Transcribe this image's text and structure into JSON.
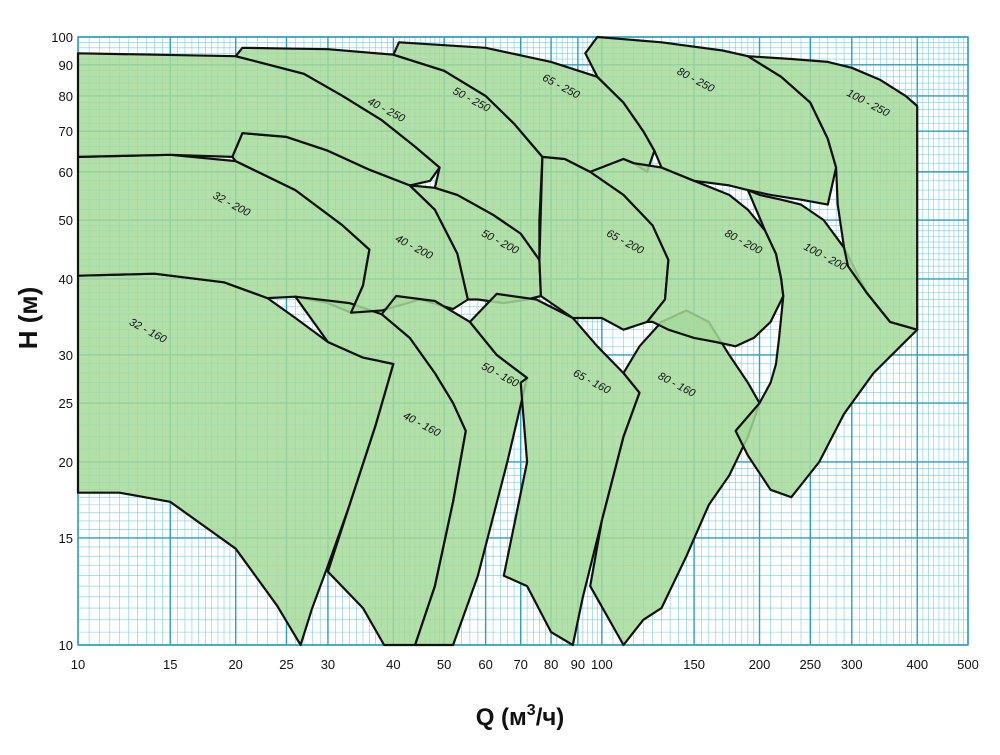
{
  "chart_data": {
    "type": "area",
    "xlabel_main": "Q (м",
    "xlabel_sup": "3",
    "xlabel_tail": "/ч)",
    "ylabel": "H (м)",
    "x_scale": "log",
    "y_scale": "log",
    "xlim": [
      10,
      500
    ],
    "ylim": [
      10,
      100
    ],
    "grid": true,
    "x_ticks": [
      10,
      15,
      20,
      25,
      30,
      40,
      50,
      60,
      70,
      80,
      90,
      100,
      150,
      200,
      250,
      300,
      400,
      500
    ],
    "y_ticks": [
      10,
      15,
      20,
      25,
      30,
      40,
      50,
      60,
      70,
      80,
      90,
      100
    ],
    "colors": {
      "fill": "#a6d99a",
      "grid_major": "#2a9fbf",
      "grid_minor": "#7ccbe0",
      "outline": "#111111"
    },
    "zones": [
      {
        "name": "32 - 160",
        "label_x": 13.5,
        "label_y": 32.5,
        "polygon": [
          [
            10,
            17.8
          ],
          [
            10,
            40.5
          ],
          [
            14,
            40.8
          ],
          [
            19,
            39.5
          ],
          [
            23,
            37.2
          ],
          [
            26,
            34.5
          ],
          [
            30,
            31.5
          ],
          [
            35,
            29.7
          ],
          [
            40,
            29
          ],
          [
            37,
            23
          ],
          [
            33,
            17
          ],
          [
            30,
            13.5
          ],
          [
            28,
            11.5
          ],
          [
            26.6,
            10
          ],
          [
            24,
            11.6
          ],
          [
            20,
            14.4
          ],
          [
            15,
            17.2
          ],
          [
            12,
            17.8
          ]
        ]
      },
      {
        "name": "32 - 200",
        "label_x": 19.5,
        "label_y": 52.5,
        "polygon": [
          [
            10,
            40.5
          ],
          [
            10,
            63.5
          ],
          [
            15,
            64
          ],
          [
            20,
            62.5
          ],
          [
            26,
            56
          ],
          [
            32,
            49
          ],
          [
            36,
            44.7
          ],
          [
            35,
            39
          ],
          [
            33.2,
            35.2
          ],
          [
            30,
            36.5
          ],
          [
            26,
            37.4
          ],
          [
            23,
            37.2
          ],
          [
            19,
            39.5
          ],
          [
            14,
            40.8
          ]
        ]
      },
      {
        "name": "40 - 160",
        "label_x": 45,
        "label_y": 22.8,
        "polygon": [
          [
            26,
            37.4
          ],
          [
            33,
            36.5
          ],
          [
            38,
            35
          ],
          [
            43,
            32
          ],
          [
            48,
            28
          ],
          [
            52,
            25
          ],
          [
            55,
            22.5
          ],
          [
            52,
            17.2
          ],
          [
            48,
            12.5
          ],
          [
            44,
            10
          ],
          [
            38.4,
            10
          ],
          [
            35,
            11.5
          ],
          [
            30,
            13.2
          ],
          [
            33,
            17
          ],
          [
            37,
            23
          ],
          [
            40,
            29
          ],
          [
            35,
            29.7
          ],
          [
            30,
            31.5
          ]
        ]
      },
      {
        "name": "40 - 200",
        "label_x": 43.5,
        "label_y": 44.6,
        "polygon": [
          [
            19.7,
            63.5
          ],
          [
            20.6,
            69.5
          ],
          [
            25,
            68.5
          ],
          [
            30,
            65
          ],
          [
            36,
            60.5
          ],
          [
            43,
            57
          ],
          [
            48,
            52
          ],
          [
            53,
            44
          ],
          [
            55.5,
            37
          ],
          [
            52,
            35.7
          ],
          [
            45,
            37
          ],
          [
            38,
            35.5
          ],
          [
            33.2,
            35.2
          ],
          [
            35,
            39
          ],
          [
            36,
            44.7
          ],
          [
            32,
            49
          ],
          [
            26,
            56
          ],
          [
            20,
            62.5
          ]
        ]
      },
      {
        "name": "40 - 250",
        "label_x": 38.5,
        "label_y": 75,
        "polygon": [
          [
            10,
            63.5
          ],
          [
            10,
            94
          ],
          [
            20,
            93
          ],
          [
            27,
            87
          ],
          [
            32,
            80
          ],
          [
            38,
            73
          ],
          [
            44,
            66
          ],
          [
            49,
            61
          ],
          [
            47,
            58
          ],
          [
            43,
            57
          ],
          [
            36,
            60.5
          ],
          [
            30,
            65
          ],
          [
            25,
            68.5
          ],
          [
            20.6,
            69.5
          ],
          [
            19.7,
            63.5
          ],
          [
            15,
            64
          ]
        ]
      },
      {
        "name": "50 - 160",
        "label_x": 63.5,
        "label_y": 27.5,
        "polygon": [
          [
            38,
            35
          ],
          [
            40.5,
            37.5
          ],
          [
            48,
            36.8
          ],
          [
            56,
            34
          ],
          [
            63,
            30
          ],
          [
            72,
            27.5
          ],
          [
            66,
            20
          ],
          [
            58,
            13
          ],
          [
            52,
            10
          ],
          [
            48,
            10
          ],
          [
            44,
            10
          ],
          [
            48,
            12.5
          ],
          [
            52,
            17.2
          ],
          [
            55,
            22.5
          ],
          [
            52,
            25
          ],
          [
            48,
            28
          ],
          [
            43,
            32
          ]
        ]
      },
      {
        "name": "50 - 200",
        "label_x": 63.5,
        "label_y": 45.5,
        "polygon": [
          [
            43,
            57
          ],
          [
            48,
            56.5
          ],
          [
            53,
            55
          ],
          [
            62,
            51
          ],
          [
            70,
            47.5
          ],
          [
            76,
            43
          ],
          [
            76.5,
            37.5
          ],
          [
            72,
            37
          ],
          [
            65,
            36.5
          ],
          [
            58,
            37
          ],
          [
            55.5,
            37
          ],
          [
            53,
            44
          ],
          [
            48,
            52
          ]
        ]
      },
      {
        "name": "50 - 250",
        "label_x": 56,
        "label_y": 78,
        "polygon": [
          [
            20,
            93
          ],
          [
            20.6,
            96
          ],
          [
            30,
            95.5
          ],
          [
            40,
            93.5
          ],
          [
            50,
            88
          ],
          [
            60,
            80
          ],
          [
            68,
            72
          ],
          [
            77,
            63.5
          ],
          [
            76,
            50
          ],
          [
            76,
            43
          ],
          [
            70,
            47.5
          ],
          [
            62,
            51
          ],
          [
            53,
            55
          ],
          [
            48,
            56.5
          ],
          [
            49,
            61
          ],
          [
            44,
            66
          ],
          [
            38,
            73
          ],
          [
            32,
            80
          ],
          [
            27,
            87
          ]
        ]
      },
      {
        "name": "65 - 160",
        "label_x": 95,
        "label_y": 26.8,
        "polygon": [
          [
            56,
            34
          ],
          [
            63,
            37.8
          ],
          [
            75,
            37
          ],
          [
            88,
            34.5
          ],
          [
            98,
            31
          ],
          [
            110,
            28
          ],
          [
            118,
            26
          ],
          [
            110,
            22
          ],
          [
            100,
            16
          ],
          [
            92,
            12
          ],
          [
            88,
            10
          ],
          [
            80,
            10.5
          ],
          [
            72,
            12.5
          ],
          [
            65,
            13
          ],
          [
            72,
            20
          ],
          [
            70,
            27
          ],
          [
            72,
            27.5
          ],
          [
            63,
            30
          ]
        ]
      },
      {
        "name": "65 - 200",
        "label_x": 110,
        "label_y": 45.5,
        "polygon": [
          [
            76,
            43
          ],
          [
            77,
            63.5
          ],
          [
            85,
            63
          ],
          [
            95,
            60
          ],
          [
            110,
            55
          ],
          [
            125,
            49
          ],
          [
            134,
            43
          ],
          [
            132,
            37
          ],
          [
            122,
            34
          ],
          [
            110,
            33
          ],
          [
            100,
            34.5
          ],
          [
            88,
            34.5
          ],
          [
            76.5,
            37.5
          ]
        ]
      },
      {
        "name": "65 - 250",
        "label_x": 83,
        "label_y": 82,
        "polygon": [
          [
            40,
            93.5
          ],
          [
            41,
            98
          ],
          [
            60,
            96
          ],
          [
            80,
            91
          ],
          [
            98,
            86
          ],
          [
            110,
            78
          ],
          [
            120,
            70
          ],
          [
            126,
            65
          ],
          [
            122,
            60
          ],
          [
            115,
            62
          ],
          [
            110,
            63
          ],
          [
            95,
            60
          ],
          [
            85,
            63
          ],
          [
            77,
            63.5
          ],
          [
            68,
            72
          ],
          [
            60,
            80
          ],
          [
            50,
            88
          ]
        ]
      },
      {
        "name": "80 - 160",
        "label_x": 138,
        "label_y": 26.5,
        "polygon": [
          [
            110,
            28
          ],
          [
            118,
            31
          ],
          [
            130,
            34
          ],
          [
            145,
            35.5
          ],
          [
            160,
            34
          ],
          [
            175,
            30
          ],
          [
            190,
            27
          ],
          [
            200,
            25
          ],
          [
            190,
            22
          ],
          [
            175,
            19
          ],
          [
            160,
            17
          ],
          [
            145,
            14
          ],
          [
            130,
            11.5
          ],
          [
            120,
            11
          ],
          [
            110,
            10
          ],
          [
            95,
            12.5
          ],
          [
            100,
            16
          ],
          [
            110,
            22
          ],
          [
            118,
            26
          ]
        ]
      },
      {
        "name": "80 - 200",
        "label_x": 185,
        "label_y": 45.5,
        "polygon": [
          [
            110,
            63
          ],
          [
            115,
            62
          ],
          [
            130,
            61
          ],
          [
            150,
            58
          ],
          [
            175,
            55
          ],
          [
            190,
            52
          ],
          [
            205,
            48
          ],
          [
            215,
            44
          ],
          [
            220,
            40
          ],
          [
            222,
            37.5
          ],
          [
            210,
            34
          ],
          [
            195,
            32
          ],
          [
            180,
            31
          ],
          [
            165,
            31.5
          ],
          [
            150,
            32
          ],
          [
            134,
            33
          ],
          [
            125,
            34
          ],
          [
            122,
            34
          ],
          [
            132,
            37
          ],
          [
            134,
            43
          ],
          [
            125,
            49
          ],
          [
            110,
            55
          ],
          [
            95,
            60
          ]
        ]
      },
      {
        "name": "80 - 250",
        "label_x": 150,
        "label_y": 84,
        "polygon": [
          [
            93,
            94
          ],
          [
            98,
            100
          ],
          [
            130,
            98
          ],
          [
            170,
            95
          ],
          [
            190,
            93
          ],
          [
            220,
            86
          ],
          [
            250,
            78
          ],
          [
            270,
            68
          ],
          [
            280,
            61
          ],
          [
            270,
            53
          ],
          [
            240,
            54
          ],
          [
            210,
            55
          ],
          [
            190,
            56
          ],
          [
            175,
            57
          ],
          [
            150,
            58
          ],
          [
            130,
            61
          ],
          [
            126,
            65
          ],
          [
            120,
            70
          ],
          [
            110,
            78
          ],
          [
            98,
            86
          ]
        ]
      },
      {
        "name": "100 - 200",
        "label_x": 265,
        "label_y": 43,
        "polygon": [
          [
            190,
            56
          ],
          [
            200,
            55
          ],
          [
            220,
            54
          ],
          [
            240,
            53
          ],
          [
            265,
            50
          ],
          [
            290,
            45
          ],
          [
            320,
            38
          ],
          [
            355,
            34
          ],
          [
            400,
            33
          ],
          [
            330,
            28
          ],
          [
            290,
            24
          ],
          [
            260,
            20
          ],
          [
            230,
            17.5
          ],
          [
            210,
            18
          ],
          [
            190,
            20.5
          ],
          [
            180,
            22.5
          ],
          [
            200,
            25
          ],
          [
            210,
            27
          ],
          [
            215,
            29
          ],
          [
            218,
            32
          ],
          [
            222,
            37.5
          ],
          [
            220,
            40
          ],
          [
            215,
            44
          ],
          [
            205,
            48
          ]
        ]
      },
      {
        "name": "100 - 250",
        "label_x": 320,
        "label_y": 77,
        "polygon": [
          [
            190,
            93
          ],
          [
            230,
            92
          ],
          [
            270,
            91
          ],
          [
            300,
            89
          ],
          [
            340,
            85
          ],
          [
            380,
            80
          ],
          [
            400,
            77
          ],
          [
            400,
            33
          ],
          [
            355,
            34
          ],
          [
            320,
            38
          ],
          [
            295,
            42
          ],
          [
            290,
            45
          ],
          [
            282,
            53
          ],
          [
            280,
            61
          ],
          [
            270,
            68
          ],
          [
            250,
            78
          ],
          [
            220,
            86
          ]
        ]
      }
    ]
  }
}
